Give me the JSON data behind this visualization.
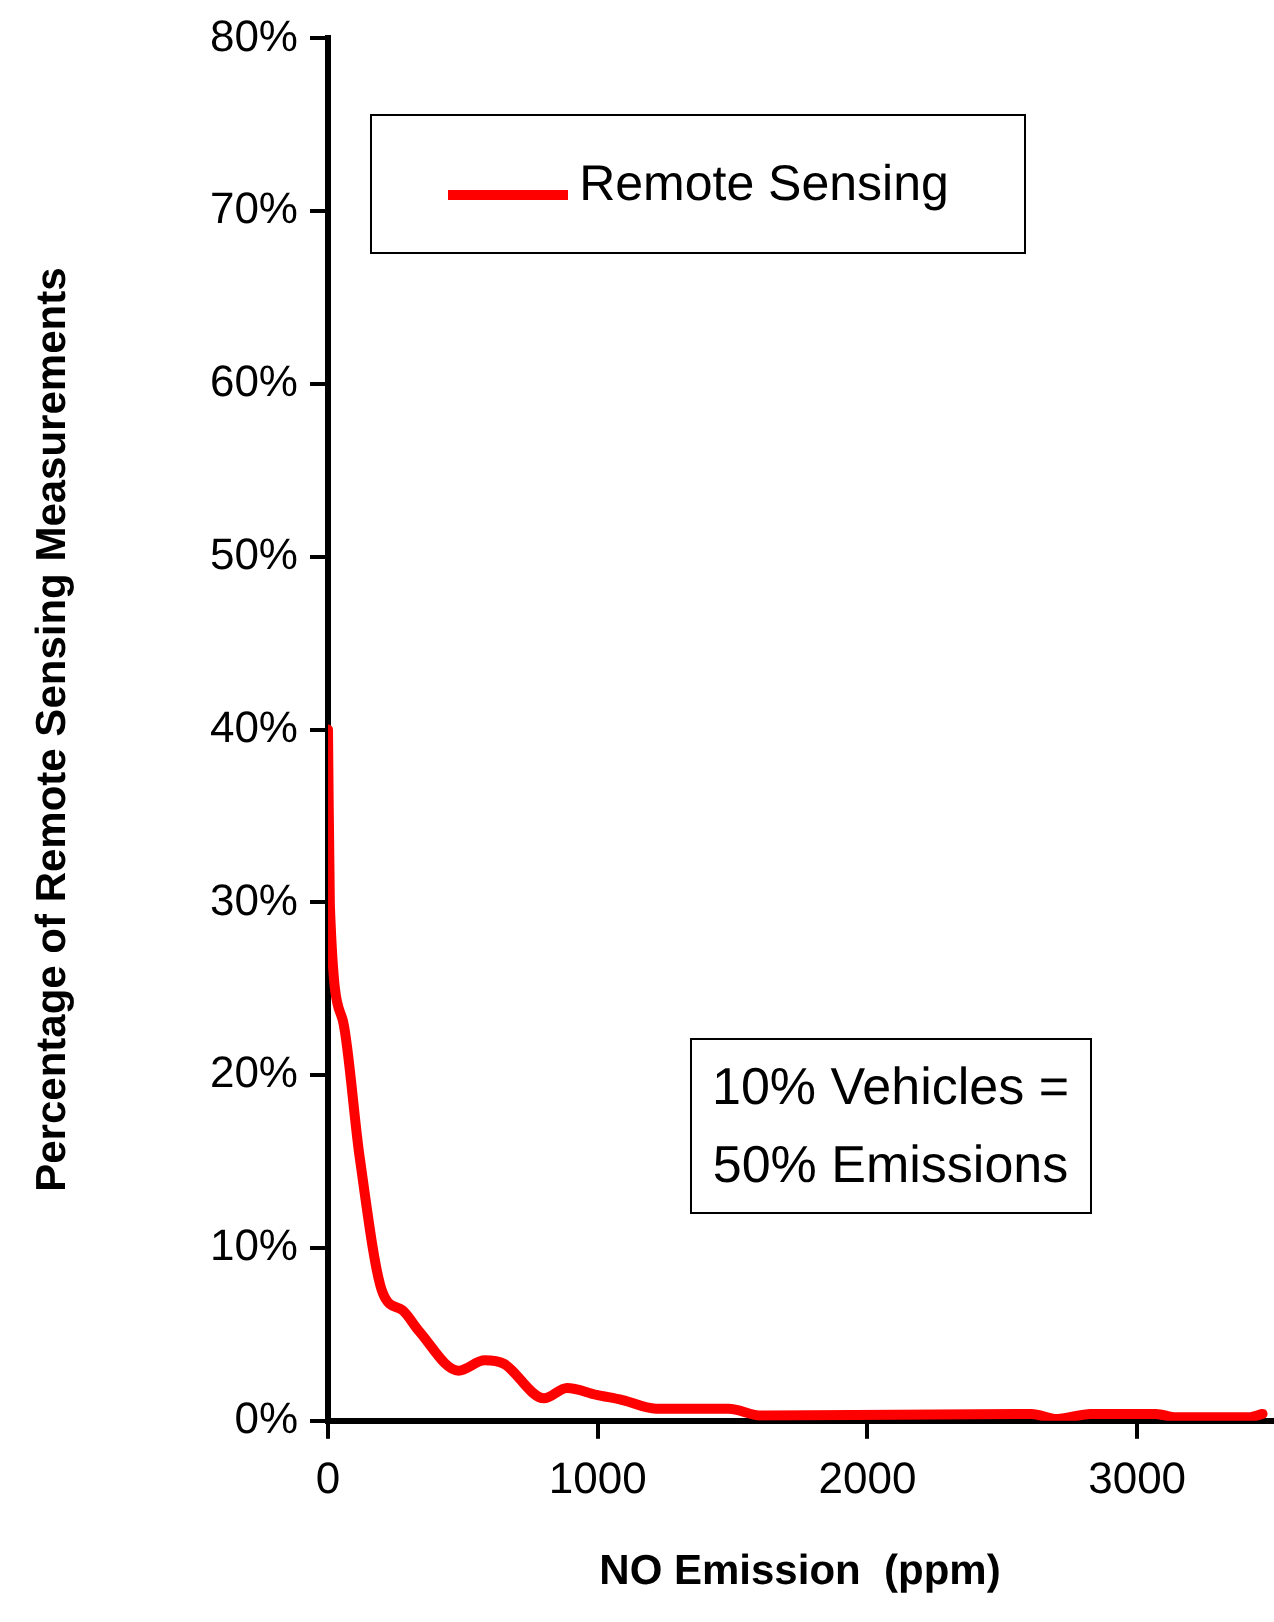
{
  "chart_data": {
    "type": "line",
    "xlabel": "NO Emission  (ppm)",
    "ylabel": "Percentage of Remote Sensing Measurements",
    "x": [
      0,
      7,
      56,
      117,
      203,
      276,
      337,
      484,
      581,
      652,
      801,
      886,
      996,
      1092,
      1216,
      1485,
      1607,
      2608,
      2703,
      2828,
      3070,
      3143,
      3414,
      3465
    ],
    "series": [
      {
        "name": "Remote Sensing",
        "color": "#ff0000",
        "values": [
          40,
          29.8,
          23.1,
          15.3,
          7.4,
          6.4,
          5.2,
          2.9,
          3.5,
          3.3,
          1.3,
          1.9,
          1.5,
          1.2,
          0.7,
          0.7,
          0.3,
          0.4,
          0.1,
          0.4,
          0.4,
          0.2,
          0.2,
          0.4
        ]
      }
    ],
    "xlim": [
      0,
      3500
    ],
    "xticks": [
      0,
      1000,
      2000,
      3000
    ],
    "ylim": [
      0,
      80
    ],
    "yticks": [
      {
        "value": 0,
        "label": "0%"
      },
      {
        "value": 10,
        "label": "10%"
      },
      {
        "value": 20,
        "label": "20%"
      },
      {
        "value": 30,
        "label": "30%"
      },
      {
        "value": 40,
        "label": "40%"
      },
      {
        "value": 50,
        "label": "50%"
      },
      {
        "value": 60,
        "label": "60%"
      },
      {
        "value": 70,
        "label": "70%"
      },
      {
        "value": 80,
        "label": "80%"
      }
    ],
    "grid": false,
    "legend": "top",
    "marker": "none",
    "line_style": "solid",
    "annotations": [
      "10% Vehicles =\n50% Emissions"
    ]
  }
}
